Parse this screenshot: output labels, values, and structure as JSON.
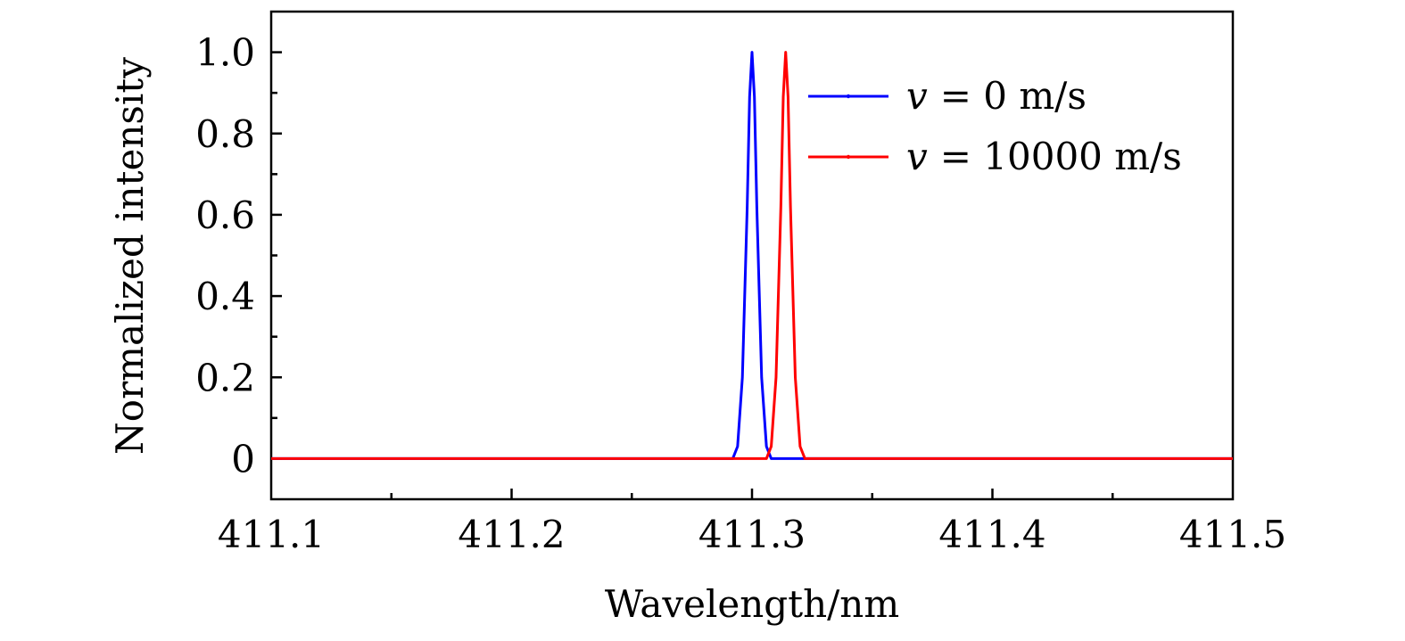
{
  "chart_data": {
    "type": "line",
    "title": "",
    "xlabel": "Wavelength/nm",
    "ylabel": "Normalized intensity",
    "xlim": [
      411.1,
      411.5
    ],
    "ylim": [
      -0.1,
      1.1
    ],
    "x_ticks": [
      411.1,
      411.2,
      411.3,
      411.4,
      411.5
    ],
    "x_tick_labels": [
      "411.1",
      "411.2",
      "411.3",
      "411.4",
      "411.5"
    ],
    "y_ticks": [
      0,
      0.2,
      0.4,
      0.6,
      0.8,
      1.0
    ],
    "y_tick_labels": [
      "0",
      "0.2",
      "0.4",
      "0.6",
      "0.8",
      "1.0"
    ],
    "grid": false,
    "legend_position": "top-right",
    "series": [
      {
        "name": "v = 0 m/s",
        "legend_var": "v",
        "legend_rest": "= 0 m/s",
        "color": "#0000ff",
        "x": [
          411.1,
          411.292,
          411.294,
          411.296,
          411.298,
          411.299,
          411.3,
          411.301,
          411.302,
          411.304,
          411.306,
          411.308,
          411.5
        ],
        "y": [
          0,
          0,
          0.03,
          0.2,
          0.62,
          0.89,
          1.0,
          0.89,
          0.62,
          0.2,
          0.03,
          0,
          0
        ]
      },
      {
        "name": "v = 10000 m/s",
        "legend_var": "v",
        "legend_rest": "= 10000 m/s",
        "color": "#ff0000",
        "x": [
          411.1,
          411.306,
          411.308,
          411.31,
          411.312,
          411.313,
          411.314,
          411.315,
          411.316,
          411.318,
          411.32,
          411.322,
          411.5
        ],
        "y": [
          0,
          0,
          0.03,
          0.2,
          0.62,
          0.89,
          1.0,
          0.89,
          0.62,
          0.2,
          0.03,
          0,
          0
        ]
      }
    ]
  }
}
